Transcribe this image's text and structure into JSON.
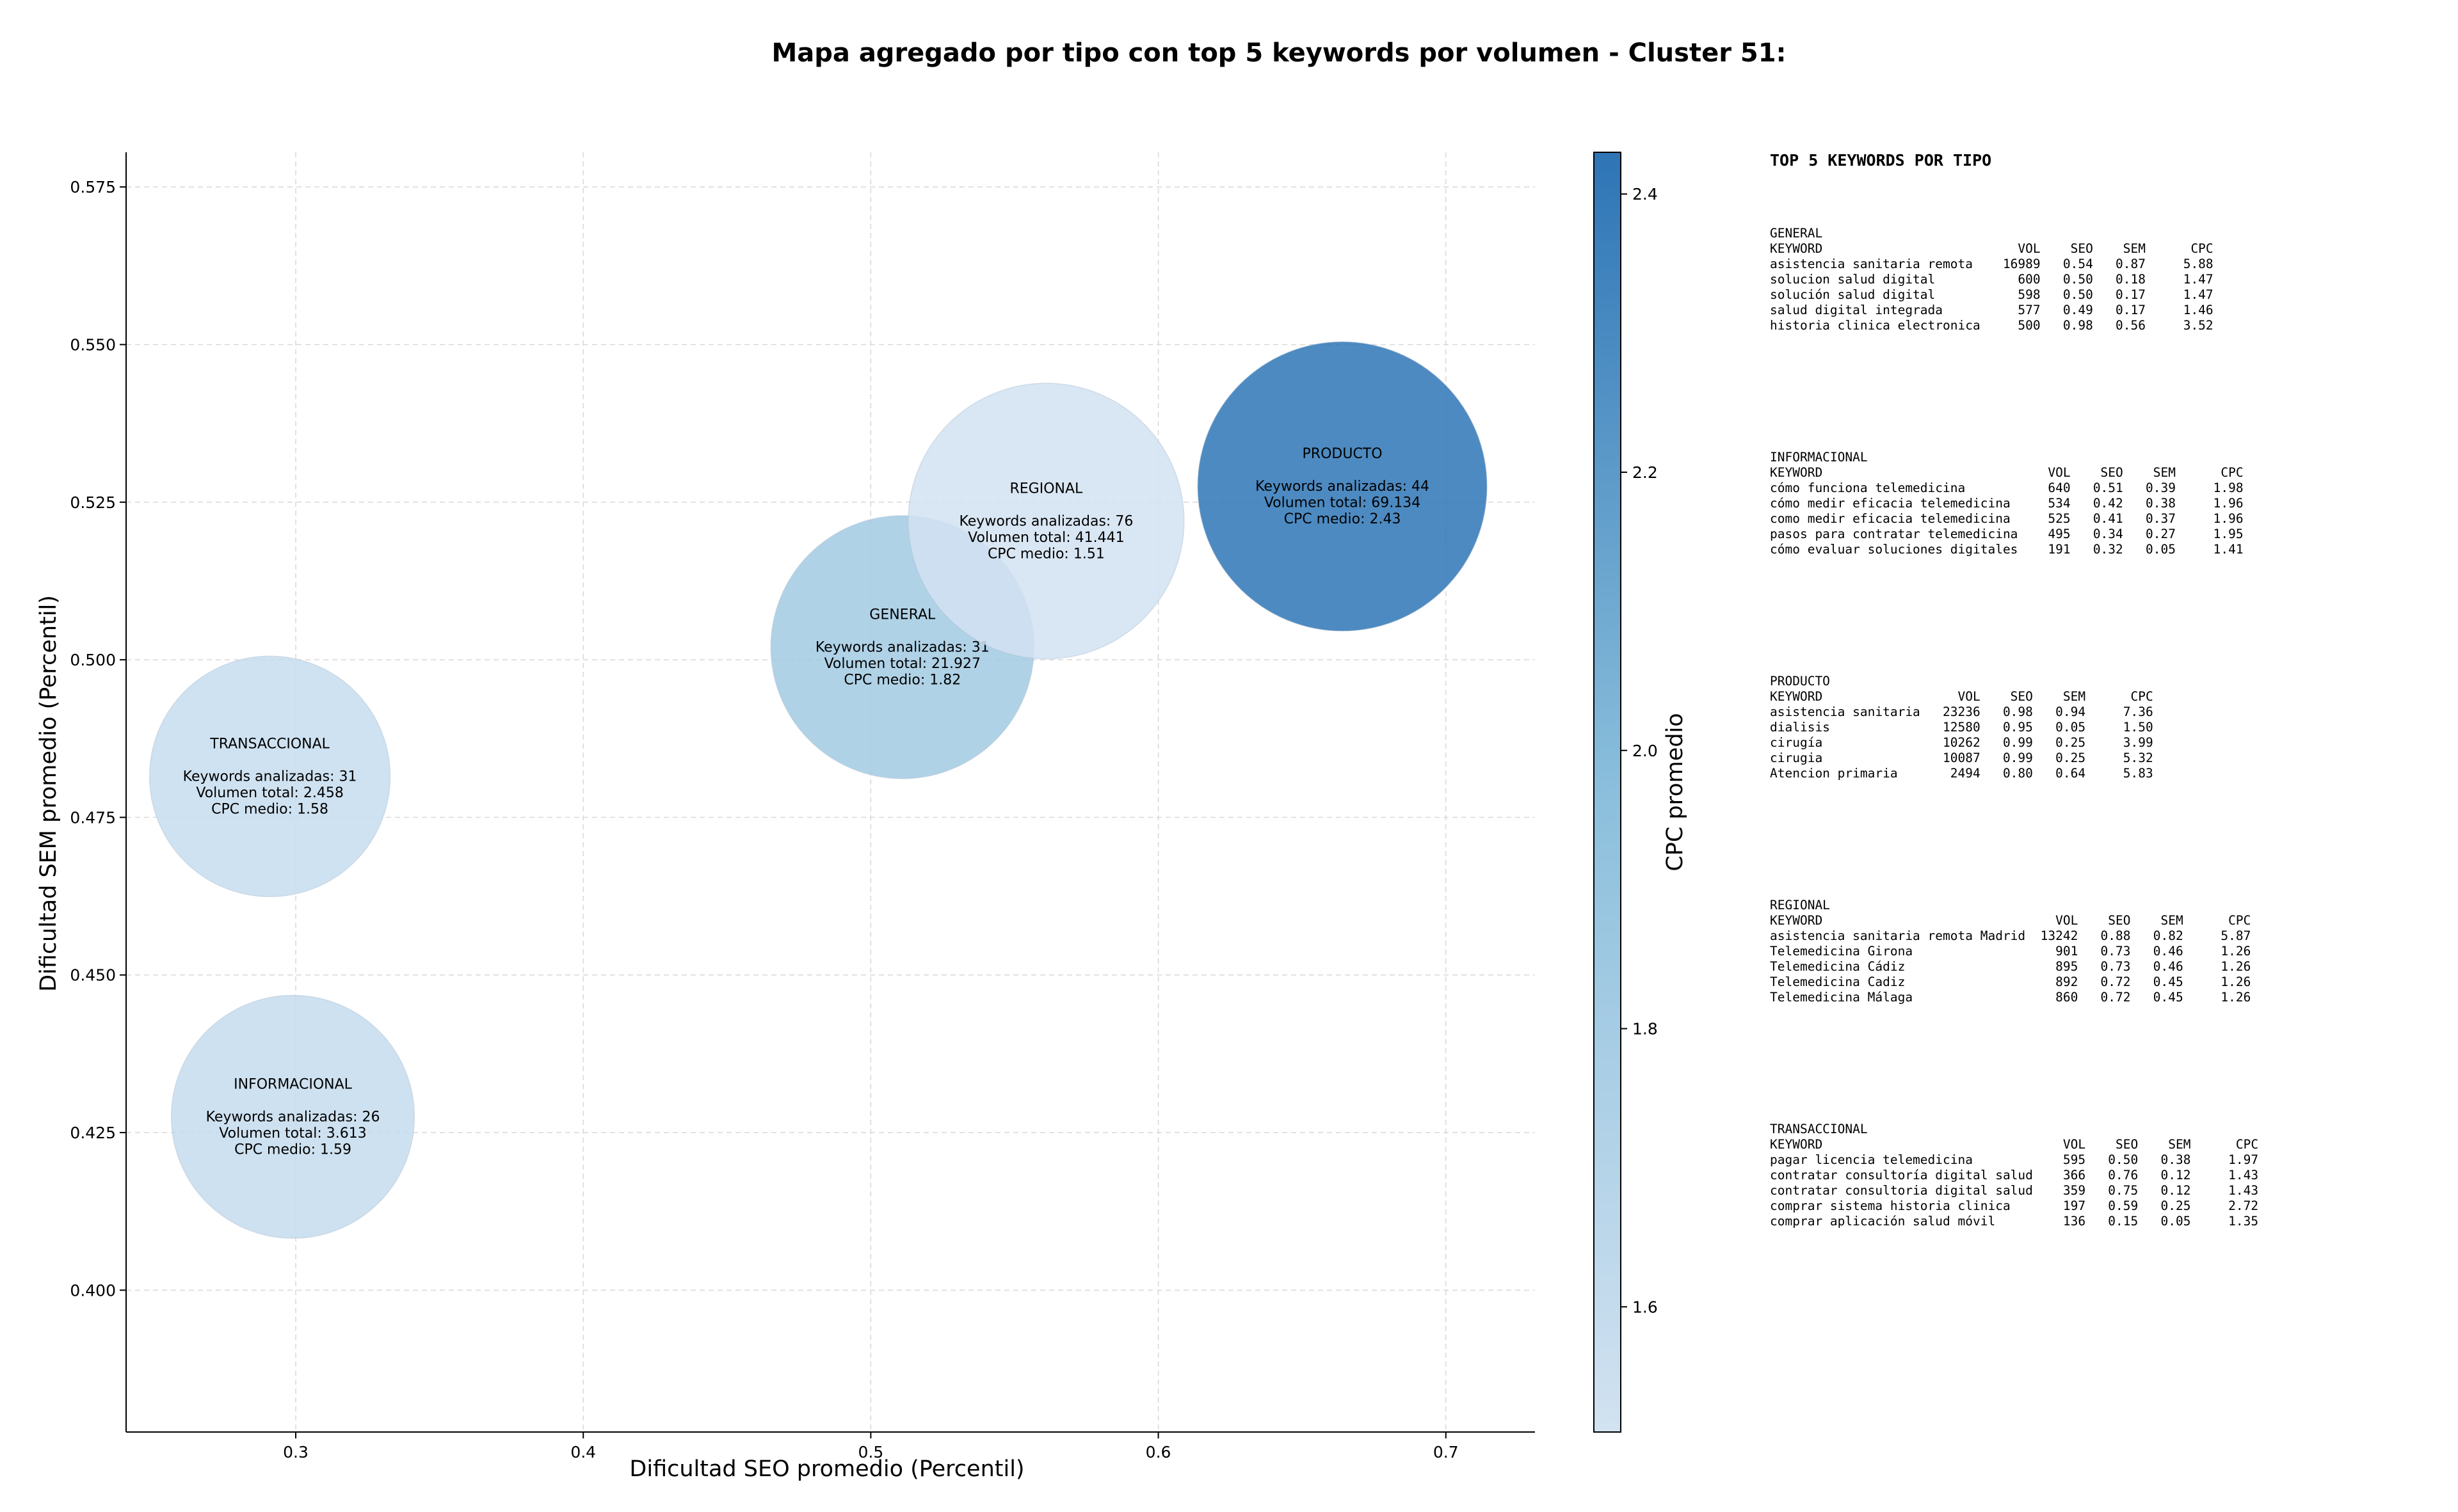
{
  "chart_data": {
    "type": "scatter",
    "title": "Mapa agregado por tipo con top 5 keywords por volumen - Cluster 51:",
    "xlabel": "Dificultad SEO promedio (Percentil)",
    "ylabel": "Dificultad SEM promedio (Percentil)",
    "xlim": [
      0.241,
      0.731
    ],
    "ylim": [
      0.3775,
      0.5805
    ],
    "xticks": [
      0.3,
      0.4,
      0.5,
      0.6,
      0.7
    ],
    "xtick_labels": [
      "0.3",
      "0.4",
      "0.5",
      "0.6",
      "0.7"
    ],
    "yticks": [
      0.4,
      0.425,
      0.45,
      0.475,
      0.5,
      0.525,
      0.55,
      0.575
    ],
    "ytick_labels": [
      "0.400",
      "0.425",
      "0.450",
      "0.475",
      "0.500",
      "0.525",
      "0.550",
      "0.575"
    ],
    "grid": true,
    "colorbar": {
      "label": "CPC promedio",
      "min": 1.51,
      "max": 2.43,
      "ticks": [
        1.6,
        1.8,
        2.0,
        2.2,
        2.4
      ],
      "tick_labels": [
        "1.6",
        "1.8",
        "2.0",
        "2.2",
        "2.4"
      ],
      "color_low": "#d2e2f1",
      "color_mid": "#8bbfdc",
      "color_high": "#2e75b6"
    },
    "points": [
      {
        "name": "TRANSACCIONAL",
        "x": 0.291,
        "y": 0.4815,
        "keywords": 31,
        "volume": 2458,
        "cpc": 1.58,
        "label_lines": [
          "TRANSACCIONAL",
          "",
          "Keywords analizadas: 31",
          "Volumen total: 2.458",
          "CPC medio: 1.58"
        ]
      },
      {
        "name": "INFORMACIONAL",
        "x": 0.299,
        "y": 0.4275,
        "keywords": 26,
        "volume": 3613,
        "cpc": 1.59,
        "label_lines": [
          "INFORMACIONAL",
          "",
          "Keywords analizadas: 26",
          "Volumen total: 3.613",
          "CPC medio: 1.59"
        ]
      },
      {
        "name": "GENERAL",
        "x": 0.511,
        "y": 0.502,
        "keywords": 31,
        "volume": 21927,
        "cpc": 1.82,
        "label_lines": [
          "GENERAL",
          "",
          "Keywords analizadas: 31",
          "Volumen total: 21.927",
          "CPC medio: 1.82"
        ]
      },
      {
        "name": "REGIONAL",
        "x": 0.561,
        "y": 0.522,
        "keywords": 76,
        "volume": 41441,
        "cpc": 1.51,
        "label_lines": [
          "REGIONAL",
          "",
          "Keywords analizadas: 76",
          "Volumen total: 41.441",
          "CPC medio: 1.51"
        ]
      },
      {
        "name": "PRODUCTO",
        "x": 0.664,
        "y": 0.5275,
        "keywords": 44,
        "volume": 69134,
        "cpc": 2.43,
        "label_lines": [
          "PRODUCTO",
          "",
          "Keywords analizadas: 44",
          "Volumen total: 69.134",
          "CPC medio: 2.43"
        ]
      }
    ]
  },
  "keyword_tables": {
    "title": "TOP 5 KEYWORDS POR TIPO",
    "blocks": [
      {
        "type": "GENERAL",
        "text": "GENERAL\nKEYWORD                          VOL    SEO    SEM      CPC\nasistencia sanitaria remota    16989   0.54   0.87     5.88\nsolucion salud digital           600   0.50   0.18     1.47\nsolución salud digital           598   0.50   0.17     1.47\nsalud digital integrada          577   0.49   0.17     1.46\nhistoria clinica electronica     500   0.98   0.56     3.52"
      },
      {
        "type": "INFORMACIONAL",
        "text": "INFORMACIONAL\nKEYWORD                              VOL    SEO    SEM      CPC\ncómo funciona telemedicina           640   0.51   0.39     1.98\ncómo medir eficacia telemedicina     534   0.42   0.38     1.96\ncomo medir eficacia telemedicina     525   0.41   0.37     1.96\npasos para contratar telemedicina    495   0.34   0.27     1.95\ncómo evaluar soluciones digitales    191   0.32   0.05     1.41"
      },
      {
        "type": "PRODUCTO",
        "text": "PRODUCTO\nKEYWORD                  VOL    SEO    SEM      CPC\nasistencia sanitaria   23236   0.98   0.94     7.36\ndialisis               12580   0.95   0.05     1.50\ncirugía                10262   0.99   0.25     3.99\ncirugia                10087   0.99   0.25     5.32\nAtencion primaria       2494   0.80   0.64     5.83"
      },
      {
        "type": "REGIONAL",
        "text": "REGIONAL\nKEYWORD                               VOL    SEO    SEM      CPC\nasistencia sanitaria remota Madrid  13242   0.88   0.82     5.87\nTelemedicina Girona                   901   0.73   0.46     1.26\nTelemedicina Cádiz                    895   0.73   0.46     1.26\nTelemedicina Cadiz                    892   0.72   0.45     1.26\nTelemedicina Málaga                   860   0.72   0.45     1.26"
      },
      {
        "type": "TRANSACCIONAL",
        "text": "TRANSACCIONAL\nKEYWORD                                VOL    SEO    SEM      CPC\npagar licencia telemedicina            595   0.50   0.38     1.97\ncontratar consultoría digital salud    366   0.76   0.12     1.43\ncontratar consultoria digital salud    359   0.75   0.12     1.43\ncomprar sistema historia clinica       197   0.59   0.25     2.72\ncomprar aplicación salud móvil         136   0.15   0.05     1.35"
      }
    ]
  }
}
